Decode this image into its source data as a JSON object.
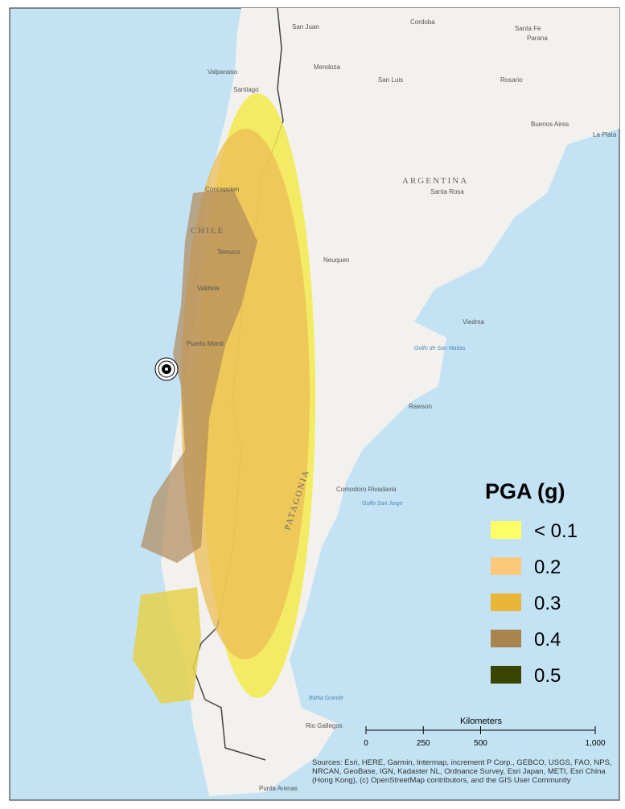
{
  "map": {
    "places": [
      "San Juan",
      "Cordoba",
      "Santa Fe",
      "Parana",
      "Valparaiso",
      "Santiago",
      "Mendoza",
      "San Luis",
      "Rosario",
      "Buenos Aires",
      "La Plata",
      "ARGENTINA",
      "Santa Rosa",
      "Concepcion",
      "CHILE",
      "Temuco",
      "Neuquen",
      "Valdivia",
      "Puerto Montt",
      "Viedma",
      "Golfo de San Matias",
      "Rawson",
      "Comodoro Rivadavia",
      "Golfo San Jorge",
      "PATAGONIA",
      "Bahia Grande",
      "Rio Gallegos",
      "Punta Arenas"
    ],
    "legend": {
      "title": "PGA (g)",
      "classes": [
        {
          "label": "< 0.1",
          "color": "#ffff66"
        },
        {
          "label": "0.2",
          "color": "#fcc97a"
        },
        {
          "label": "0.3",
          "color": "#eab638"
        },
        {
          "label": "0.4",
          "color": "#a8844e"
        },
        {
          "label": "0.5",
          "color": "#3a4500"
        }
      ]
    },
    "scale_bar": {
      "title": "Kilometers",
      "xlim": [
        0,
        1000
      ],
      "ticks": [
        0,
        250,
        500,
        {
          "value": 1000,
          "label": "1,000"
        }
      ]
    },
    "attribution": "Sources: Esri, HERE, Garmin, Intermap, increment P Corp., GEBCO, USGS, FAO, NPS, NRCAN, GeoBase, IGN, Kadaster NL, Ordnance Survey, Esri Japan, METI, Esri China (Hong Kong), (c) OpenStreetMap contributors, and the GIS User Community"
  }
}
